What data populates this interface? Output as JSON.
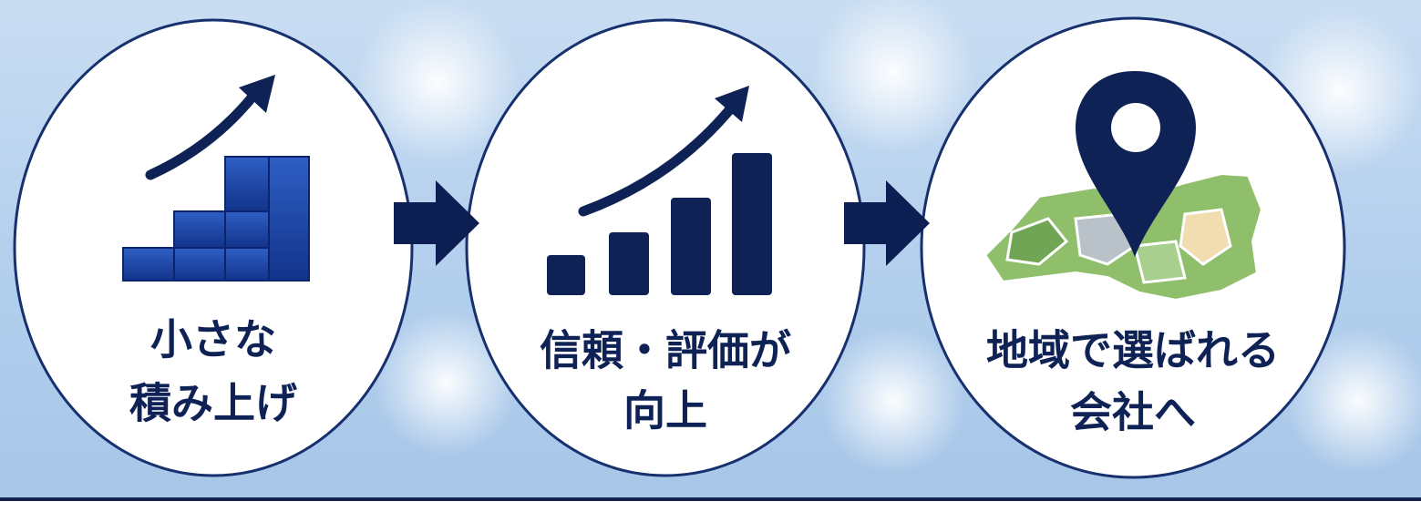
{
  "steps": [
    {
      "lines": [
        "小さな",
        "積み上げ"
      ]
    },
    {
      "lines": [
        "信頼・評価が",
        "向上"
      ]
    },
    {
      "lines": [
        "地域で選ばれる",
        "会社へ"
      ]
    }
  ]
}
